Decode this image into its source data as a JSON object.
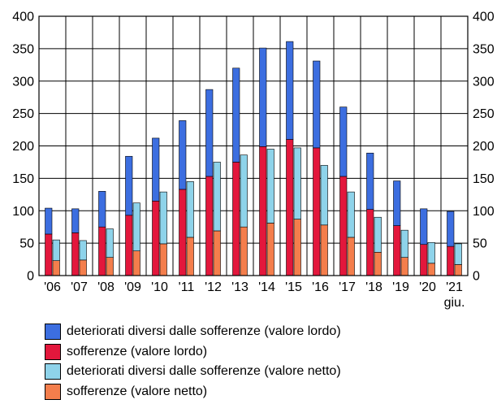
{
  "chart_data": {
    "type": "bar",
    "categories": [
      "'06",
      "'07",
      "'08",
      "'09",
      "'10",
      "'11",
      "'12",
      "'13",
      "'14",
      "'15",
      "'16",
      "'17",
      "'18",
      "'19",
      "'20",
      "'21"
    ],
    "x_sublabel": {
      "category": "'21",
      "text": "giu."
    },
    "ylim": [
      0,
      400
    ],
    "yticks": [
      0,
      50,
      100,
      150,
      200,
      250,
      300,
      350,
      400
    ],
    "grid": true,
    "stacked_groups": [
      {
        "name": "lordo",
        "series": [
          {
            "name": "sofferenze (valore lordo)",
            "color": "#e3173c",
            "values": [
              64,
              66,
              75,
              93,
              115,
              133,
              153,
              175,
              199,
              210,
              197,
              153,
              102,
              77,
              48,
              45
            ]
          },
          {
            "name": "deteriorati diversi dalle sofferenze (valore lordo)",
            "color": "#3c6ee0",
            "values": [
              40,
              37,
              55,
              91,
              97,
              106,
              134,
              145,
              152,
              151,
              134,
              107,
              87,
              69,
              55,
              54
            ]
          }
        ]
      },
      {
        "name": "netto",
        "series": [
          {
            "name": "sofferenze (valore netto)",
            "color": "#f47e4c",
            "values": [
              23,
              24,
              28,
              38,
              49,
              59,
              69,
              75,
              81,
              87,
              78,
              59,
              36,
              28,
              19,
              17
            ]
          },
          {
            "name": "deteriorati diversi dalle sofferenze (valore netto)",
            "color": "#8ed3ea",
            "values": [
              32,
              30,
              44,
              74,
              80,
              86,
              106,
              111,
              114,
              110,
              92,
              70,
              54,
              42,
              32,
              32
            ]
          }
        ]
      }
    ],
    "legend": {
      "placement": "bottom",
      "items": [
        {
          "label": "deteriorati diversi dalle sofferenze (valore lordo)",
          "color": "#3c6ee0"
        },
        {
          "label": "sofferenze (valore lordo)",
          "color": "#e3173c"
        },
        {
          "label": "deteriorati diversi dalle sofferenze (valore netto)",
          "color": "#8ed3ea"
        },
        {
          "label": "sofferenze (valore netto)",
          "color": "#f47e4c"
        }
      ]
    }
  }
}
